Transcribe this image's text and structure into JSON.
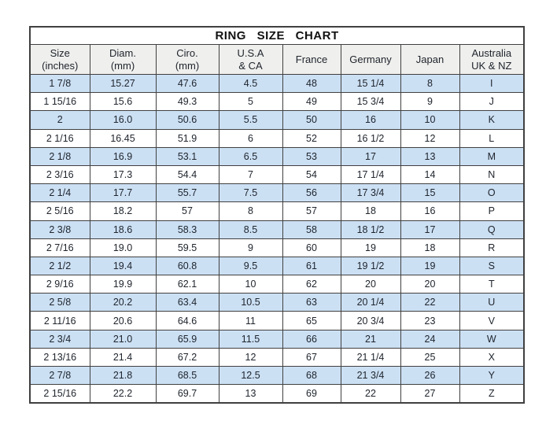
{
  "title": "RING SIZE CHART",
  "columns": [
    {
      "line1": "Size",
      "line2": "(inches)"
    },
    {
      "line1": "Diam.",
      "line2": "(mm)"
    },
    {
      "line1": "Ciro.",
      "line2": "(mm)"
    },
    {
      "line1": "U.S.A",
      "line2": "& CA"
    },
    {
      "line1": "France",
      "line2": ""
    },
    {
      "line1": "Germany",
      "line2": ""
    },
    {
      "line1": "Japan",
      "line2": ""
    },
    {
      "line1": "Australia",
      "line2": "UK & NZ"
    }
  ],
  "colors": {
    "row_alt": "#cce0f4",
    "row_plain": "#ffffff",
    "header_bg": "#efefed",
    "border": "#404040",
    "text": "#20262e"
  },
  "chart_data": {
    "type": "table",
    "title": "RING SIZE CHART",
    "columns": [
      "Size (inches)",
      "Diam. (mm)",
      "Ciro. (mm)",
      "U.S.A & CA",
      "France",
      "Germany",
      "Japan",
      "Australia UK & NZ"
    ],
    "rows": [
      [
        "1 7/8",
        "15.27",
        "47.6",
        "4.5",
        "48",
        "15 1/4",
        "8",
        "I"
      ],
      [
        "1 15/16",
        "15.6",
        "49.3",
        "5",
        "49",
        "15 3/4",
        "9",
        "J"
      ],
      [
        "2",
        "16.0",
        "50.6",
        "5.5",
        "50",
        "16",
        "10",
        "K"
      ],
      [
        "2 1/16",
        "16.45",
        "51.9",
        "6",
        "52",
        "16 1/2",
        "12",
        "L"
      ],
      [
        "2 1/8",
        "16.9",
        "53.1",
        "6.5",
        "53",
        "17",
        "13",
        "M"
      ],
      [
        "2 3/16",
        "17.3",
        "54.4",
        "7",
        "54",
        "17 1/4",
        "14",
        "N"
      ],
      [
        "2 1/4",
        "17.7",
        "55.7",
        "7.5",
        "56",
        "17 3/4",
        "15",
        "O"
      ],
      [
        "2 5/16",
        "18.2",
        "57",
        "8",
        "57",
        "18",
        "16",
        "P"
      ],
      [
        "2 3/8",
        "18.6",
        "58.3",
        "8.5",
        "58",
        "18 1/2",
        "17",
        "Q"
      ],
      [
        "2 7/16",
        "19.0",
        "59.5",
        "9",
        "60",
        "19",
        "18",
        "R"
      ],
      [
        "2 1/2",
        "19.4",
        "60.8",
        "9.5",
        "61",
        "19 1/2",
        "19",
        "S"
      ],
      [
        "2 9/16",
        "19.9",
        "62.1",
        "10",
        "62",
        "20",
        "20",
        "T"
      ],
      [
        "2 5/8",
        "20.2",
        "63.4",
        "10.5",
        "63",
        "20 1/4",
        "22",
        "U"
      ],
      [
        "2 11/16",
        "20.6",
        "64.6",
        "11",
        "65",
        "20 3/4",
        "23",
        "V"
      ],
      [
        "2 3/4",
        "21.0",
        "65.9",
        "11.5",
        "66",
        "21",
        "24",
        "W"
      ],
      [
        "2 13/16",
        "21.4",
        "67.2",
        "12",
        "67",
        "21 1/4",
        "25",
        "X"
      ],
      [
        "2 7/8",
        "21.8",
        "68.5",
        "12.5",
        "68",
        "21 3/4",
        "26",
        "Y"
      ],
      [
        "2 15/16",
        "22.2",
        "69.7",
        "13",
        "69",
        "22",
        "27",
        "Z"
      ]
    ]
  }
}
